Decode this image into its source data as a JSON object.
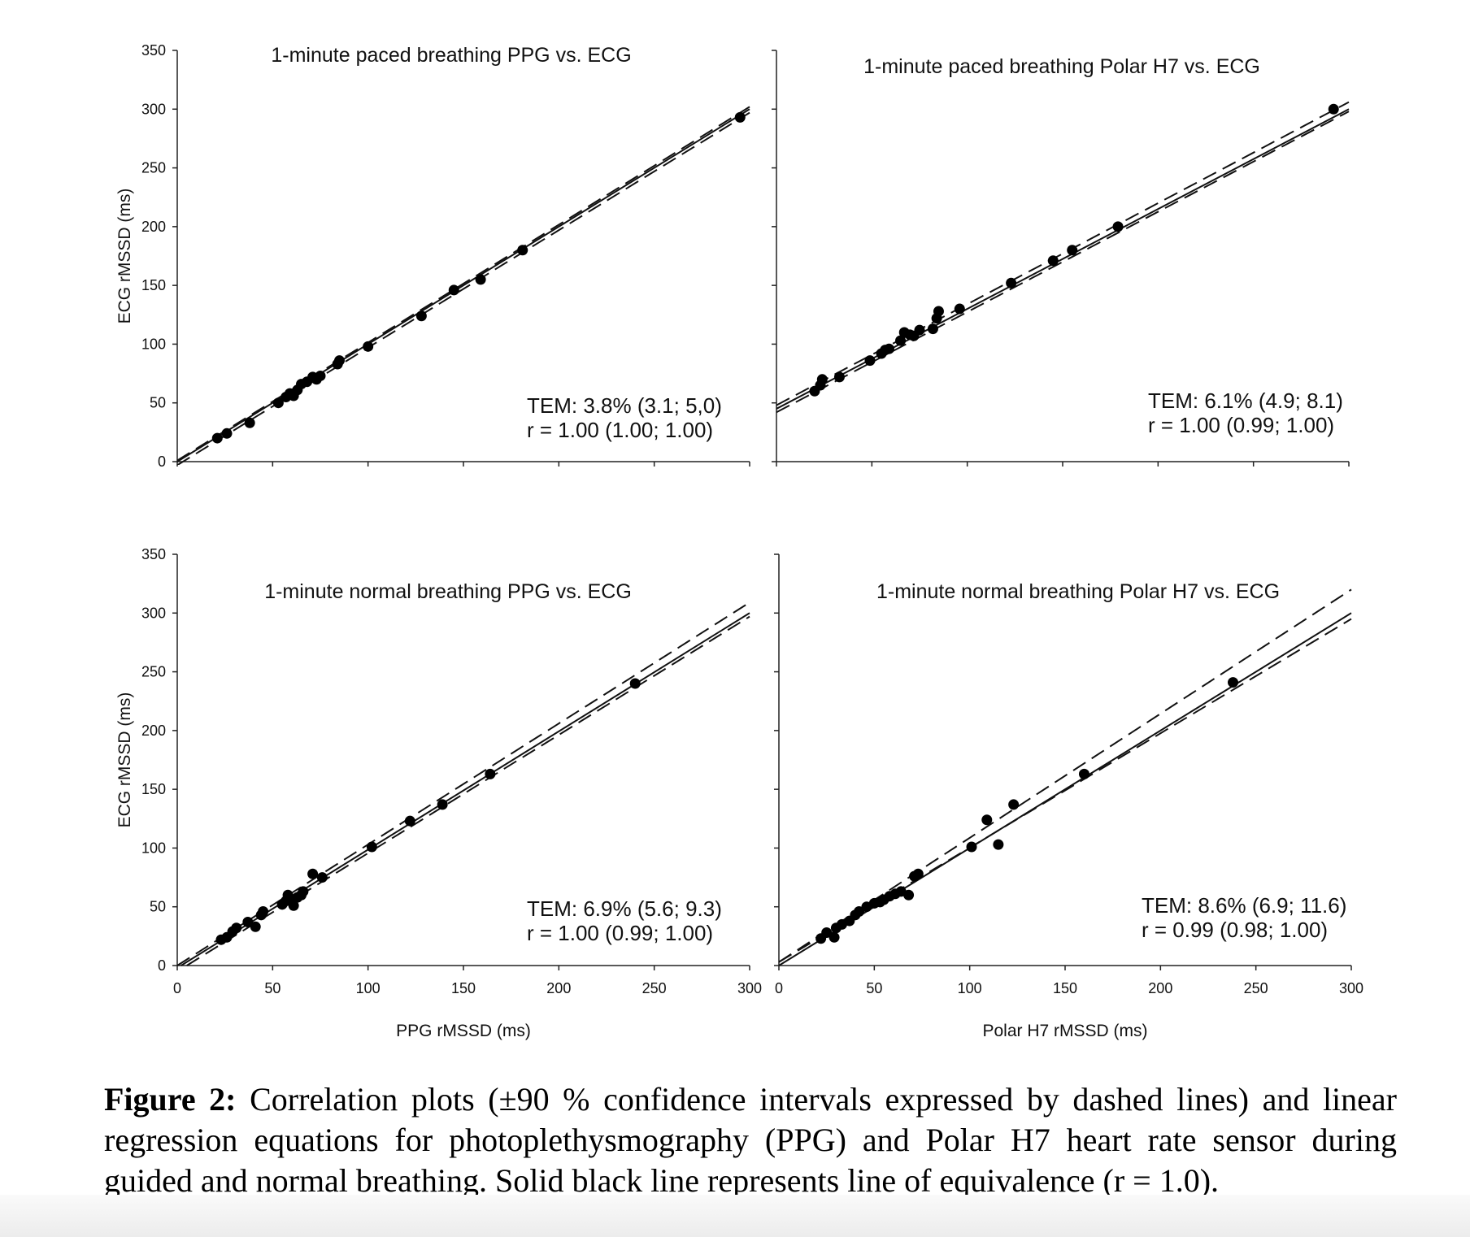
{
  "figure": {
    "caption_label": "Figure 2:",
    "caption_text": " Correlation plots (±90 % confidence intervals expressed by dashed lines) and linear regression equations for photoplethysmography (PPG) and Polar H7 heart rate sensor during guided and normal breathing. Solid black line represents line of equivalence (r = 1.0)."
  },
  "chart_data": [
    {
      "type": "scatter",
      "title": "1-minute paced breathing PPG vs. ECG",
      "xlabel": "",
      "ylabel": "ECG rMSSD (ms)",
      "xlim": [
        0,
        300
      ],
      "ylim": [
        0,
        350
      ],
      "xticks": [],
      "yticks": [
        0,
        50,
        100,
        150,
        200,
        250,
        300,
        350
      ],
      "stat_lines": [
        "TEM: 3.8% (3.1; 5,0)",
        "r = 1.00 (1.00; 1.00)"
      ],
      "lines": {
        "solid": [
          0,
          0,
          300,
          300
        ],
        "dash_upper": [
          0,
          1,
          300,
          302
        ],
        "dash_lower": [
          0,
          -3,
          300,
          297
        ]
      },
      "points": [
        [
          21,
          20
        ],
        [
          26,
          24
        ],
        [
          38,
          33
        ],
        [
          53,
          50
        ],
        [
          57,
          55
        ],
        [
          59,
          58
        ],
        [
          61,
          56
        ],
        [
          63,
          61
        ],
        [
          65,
          66
        ],
        [
          68,
          68
        ],
        [
          71,
          72
        ],
        [
          73,
          70
        ],
        [
          75,
          73
        ],
        [
          84,
          83
        ],
        [
          85,
          86
        ],
        [
          100,
          98
        ],
        [
          128,
          124
        ],
        [
          145,
          146
        ],
        [
          159,
          155
        ],
        [
          181,
          180
        ],
        [
          295,
          293
        ]
      ]
    },
    {
      "type": "scatter",
      "title": "1-minute paced breathing Polar H7 vs. ECG",
      "xlabel": "",
      "ylabel": "",
      "xlim": [
        0,
        300
      ],
      "ylim": [
        0,
        350
      ],
      "xticks": [],
      "yticks": [],
      "stat_lines": [
        "TEM: 6.1% (4.9; 8.1)",
        "r = 1.00 (0.99; 1.00)"
      ],
      "lines": {
        "solid": [
          0,
          45,
          300,
          300
        ],
        "dash_upper": [
          0,
          48,
          300,
          306
        ],
        "dash_lower": [
          0,
          42,
          300,
          298
        ]
      },
      "points": [
        [
          20,
          60
        ],
        [
          23,
          65
        ],
        [
          24,
          70
        ],
        [
          33,
          72
        ],
        [
          49,
          86
        ],
        [
          55,
          92
        ],
        [
          57,
          95
        ],
        [
          59,
          96
        ],
        [
          65,
          103
        ],
        [
          67,
          110
        ],
        [
          70,
          108
        ],
        [
          72,
          107
        ],
        [
          75,
          112
        ],
        [
          82,
          113
        ],
        [
          84,
          122
        ],
        [
          85,
          128
        ],
        [
          96,
          130
        ],
        [
          123,
          152
        ],
        [
          145,
          171
        ],
        [
          155,
          180
        ],
        [
          179,
          200
        ],
        [
          292,
          300
        ]
      ]
    },
    {
      "type": "scatter",
      "title": "1-minute normal breathing PPG vs. ECG",
      "xlabel": "PPG rMSSD (ms)",
      "ylabel": "ECG rMSSD (ms)",
      "xlim": [
        0,
        300
      ],
      "ylim": [
        0,
        350
      ],
      "xticks": [
        0,
        50,
        100,
        150,
        200,
        250,
        300
      ],
      "yticks": [
        0,
        50,
        100,
        150,
        200,
        250,
        300,
        350
      ],
      "stat_lines": [
        "TEM: 6.9% (5.6; 9.3)",
        "r = 1.00 (0.99; 1.00)"
      ],
      "lines": {
        "solid": [
          2,
          0,
          300,
          300
        ],
        "dash_upper": [
          0,
          0,
          300,
          309
        ],
        "dash_lower": [
          5,
          0,
          300,
          297
        ]
      },
      "points": [
        [
          23,
          22
        ],
        [
          26,
          24
        ],
        [
          29,
          29
        ],
        [
          31,
          32
        ],
        [
          37,
          37
        ],
        [
          41,
          33
        ],
        [
          44,
          43
        ],
        [
          45,
          46
        ],
        [
          55,
          52
        ],
        [
          57,
          55
        ],
        [
          58,
          60
        ],
        [
          60,
          56
        ],
        [
          61,
          51
        ],
        [
          63,
          58
        ],
        [
          65,
          60
        ],
        [
          66,
          63
        ],
        [
          71,
          78
        ],
        [
          76,
          75
        ],
        [
          102,
          101
        ],
        [
          122,
          123
        ],
        [
          139,
          137
        ],
        [
          164,
          163
        ],
        [
          240,
          240
        ]
      ]
    },
    {
      "type": "scatter",
      "title": "1-minute normal breathing Polar H7 vs. ECG",
      "xlabel": "Polar H7 rMSSD (ms)",
      "ylabel": "",
      "xlim": [
        0,
        300
      ],
      "ylim": [
        0,
        350
      ],
      "xticks": [
        0,
        50,
        100,
        150,
        200,
        250,
        300
      ],
      "yticks": [],
      "stat_lines": [
        "TEM: 8.6% (6.9; 11.6)",
        "r = 0.99 (0.98; 1.00)"
      ],
      "lines": {
        "solid": [
          0,
          0,
          300,
          300
        ],
        "dash_upper": [
          0,
          3,
          300,
          320
        ],
        "dash_lower": [
          0,
          3,
          300,
          295
        ]
      },
      "points": [
        [
          22,
          23
        ],
        [
          25,
          28
        ],
        [
          29,
          24
        ],
        [
          30,
          32
        ],
        [
          33,
          35
        ],
        [
          37,
          38
        ],
        [
          40,
          43
        ],
        [
          42,
          46
        ],
        [
          46,
          50
        ],
        [
          50,
          53
        ],
        [
          53,
          54
        ],
        [
          55,
          56
        ],
        [
          58,
          59
        ],
        [
          61,
          61
        ],
        [
          64,
          63
        ],
        [
          68,
          60
        ],
        [
          71,
          76
        ],
        [
          73,
          78
        ],
        [
          101,
          101
        ],
        [
          109,
          124
        ],
        [
          115,
          103
        ],
        [
          123,
          137
        ],
        [
          160,
          163
        ],
        [
          238,
          241
        ]
      ]
    }
  ]
}
